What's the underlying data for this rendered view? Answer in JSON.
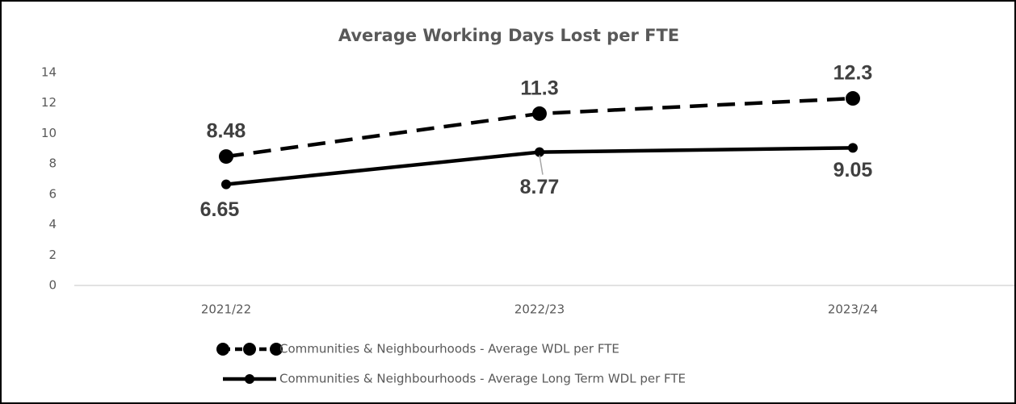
{
  "chart_data": {
    "type": "line",
    "title": "Average Working Days Lost per FTE",
    "categories": [
      "2021/22",
      "2022/23",
      "2023/24"
    ],
    "series": [
      {
        "name": "Communities & Neighbourhoods - Average WDL per FTE",
        "color": "#000000",
        "line_style": "dashed",
        "values": [
          8.48,
          11.3,
          12.3
        ]
      },
      {
        "name": "Communities & Neighbourhoods - Average Long Term WDL per FTE",
        "color": "#000000",
        "line_style": "solid",
        "values": [
          6.65,
          8.77,
          9.05
        ]
      }
    ],
    "ylim": [
      0,
      14
    ],
    "yticks": [
      0,
      2,
      4,
      6,
      8,
      10,
      12,
      14
    ],
    "grid": false,
    "legend": "bottom"
  }
}
